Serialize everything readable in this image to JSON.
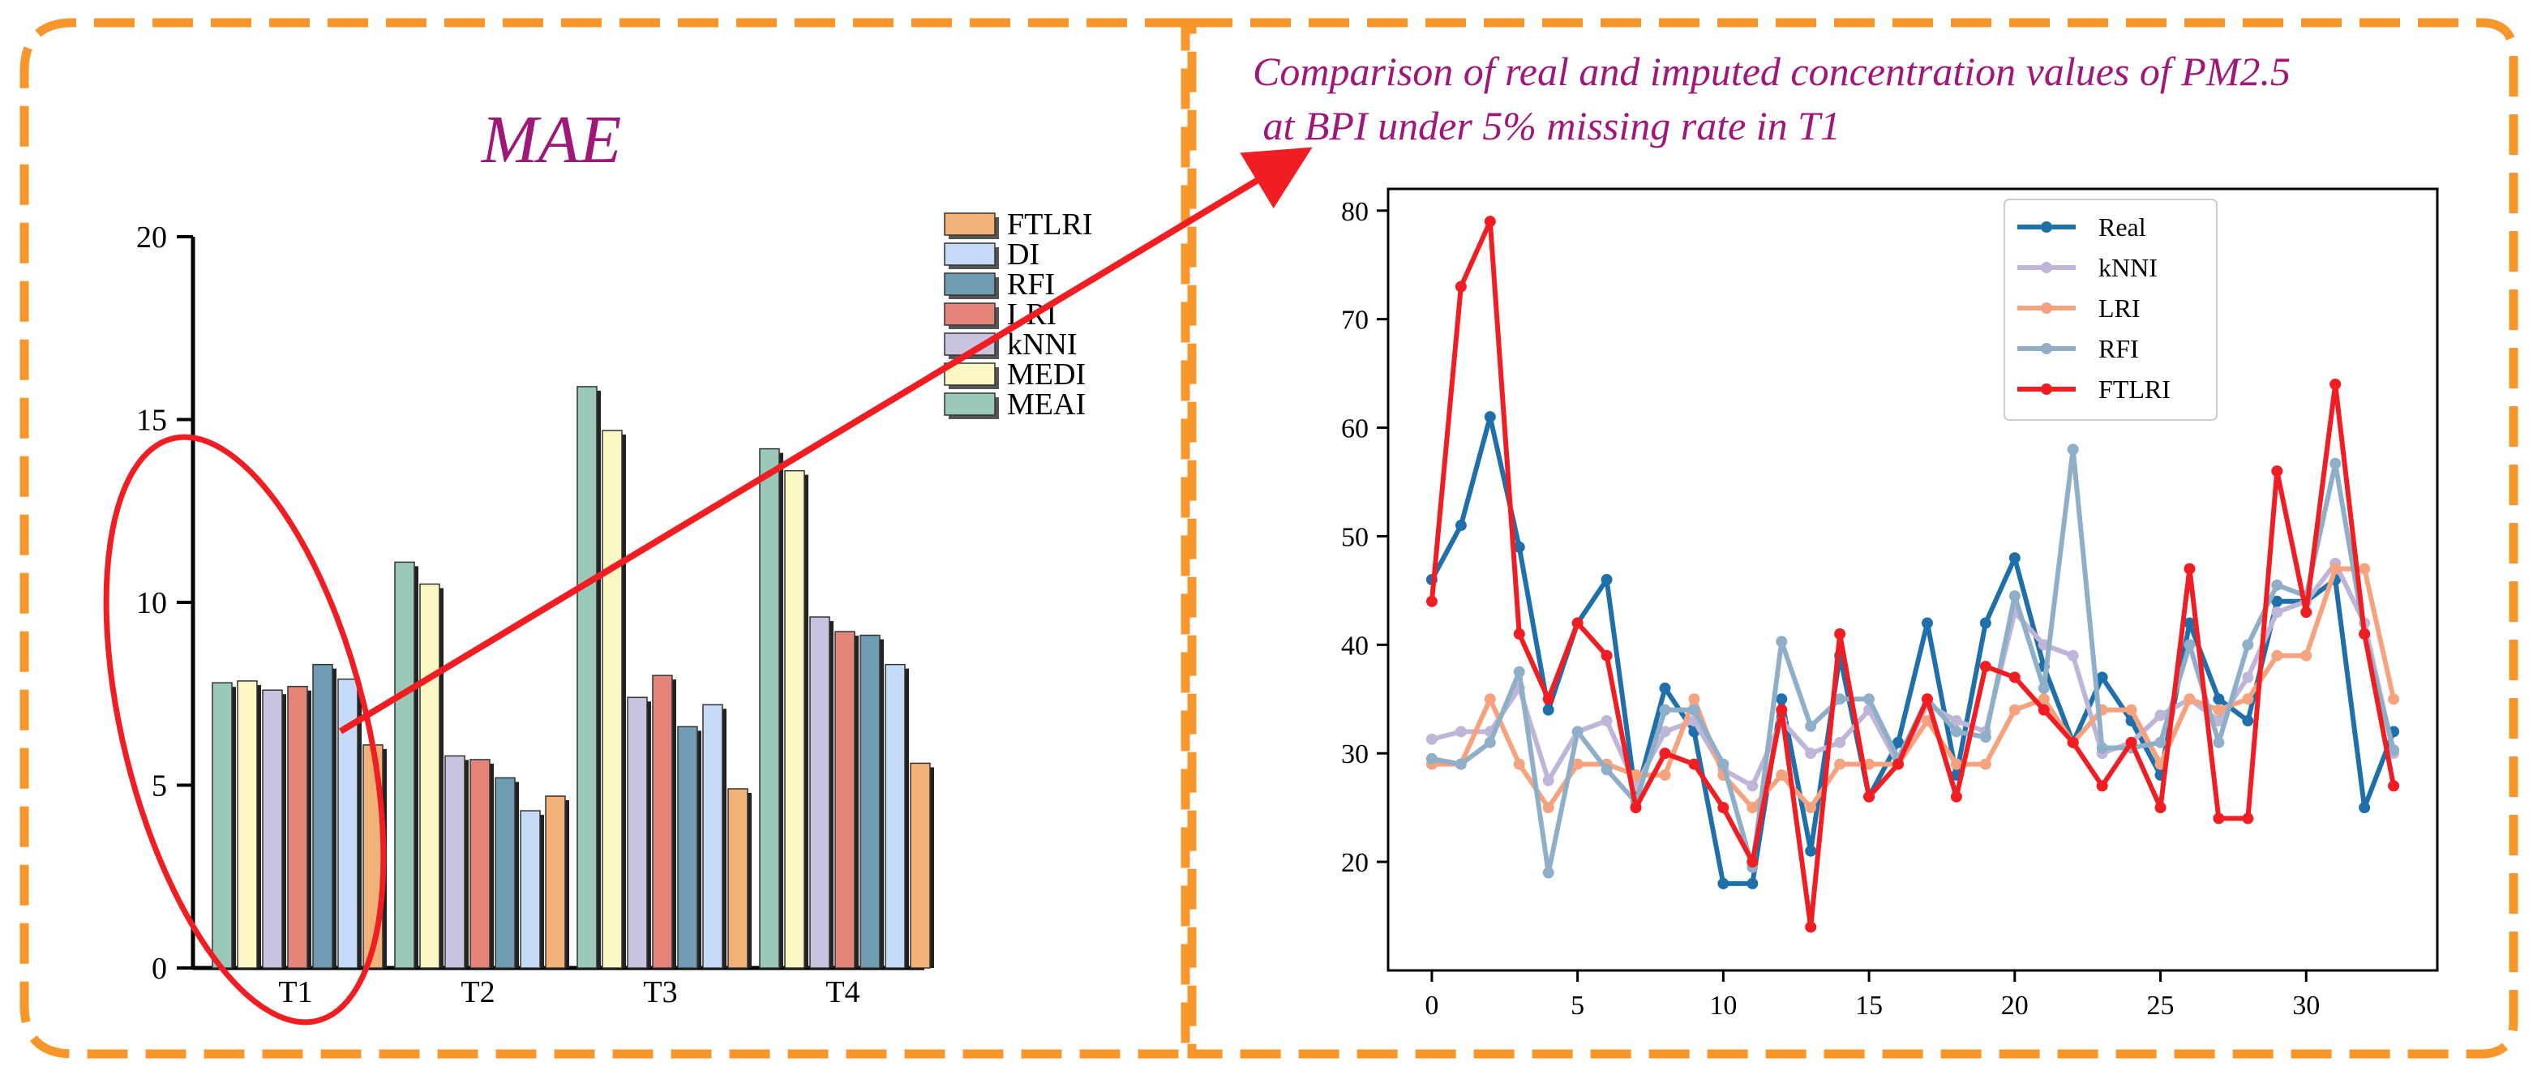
{
  "colors": {
    "frame": "#F7962A",
    "title": "#A0177A",
    "arrow": "#F01E23"
  },
  "chart_data": [
    {
      "type": "bar",
      "title": "MAE",
      "xlabel": "",
      "ylabel": "",
      "categories": [
        "T1",
        "T2",
        "T3",
        "T4"
      ],
      "ylim": [
        0,
        20
      ],
      "yticks": [
        "0",
        "5",
        "10",
        "15",
        "20"
      ],
      "legend_position": "top-right",
      "series": [
        {
          "name": "MEAI",
          "color": "#9AC8B9",
          "values": [
            7.8,
            11.1,
            15.9,
            14.2
          ]
        },
        {
          "name": "MEDI",
          "color": "#FAF7C2",
          "values": [
            7.85,
            10.5,
            14.7,
            13.6
          ]
        },
        {
          "name": "kNNI",
          "color": "#C9C3E0",
          "values": [
            7.6,
            5.8,
            7.4,
            9.6
          ]
        },
        {
          "name": "LRI",
          "color": "#E5857A",
          "values": [
            7.7,
            5.7,
            8.0,
            9.2
          ]
        },
        {
          "name": "RFI",
          "color": "#6F9BB3",
          "values": [
            8.3,
            5.2,
            6.6,
            9.1
          ]
        },
        {
          "name": "DI",
          "color": "#C4DAF6",
          "values": [
            7.9,
            4.3,
            7.2,
            8.3
          ]
        },
        {
          "name": "FTLRI",
          "color": "#F1B27A",
          "values": [
            6.1,
            4.7,
            4.9,
            5.6
          ]
        }
      ],
      "legend_order": [
        "FTLRI",
        "DI",
        "RFI",
        "LRI",
        "kNNI",
        "MEDI",
        "MEAI"
      ]
    },
    {
      "type": "line",
      "title": "Comparison of real and imputed concentration values of PM2.5",
      "title_line2": " at BPI under 5% missing rate in T1",
      "xlabel": "",
      "ylabel": "",
      "x": [
        0,
        1,
        2,
        3,
        4,
        5,
        6,
        7,
        8,
        9,
        10,
        11,
        12,
        13,
        14,
        15,
        16,
        17,
        18,
        19,
        20,
        21,
        22,
        23,
        24,
        25,
        26,
        27,
        28,
        29,
        30,
        31,
        32,
        33
      ],
      "xlim": [
        -1.5,
        34.5
      ],
      "ylim": [
        10,
        82
      ],
      "xticks": [
        "0",
        "5",
        "10",
        "15",
        "20",
        "25",
        "30"
      ],
      "yticks": [
        "20",
        "30",
        "40",
        "50",
        "60",
        "70",
        "80"
      ],
      "legend_position": "top-center",
      "series": [
        {
          "name": "Real",
          "color": "#1F6FAA",
          "values": [
            46,
            51,
            61,
            49,
            34,
            42,
            46,
            26,
            36,
            32,
            18,
            18,
            35,
            21,
            39,
            26,
            31,
            42,
            28,
            42,
            48,
            38,
            31,
            37,
            33,
            28,
            42,
            35,
            33,
            44,
            44,
            46,
            25,
            32
          ]
        },
        {
          "name": "kNNI",
          "color": "#BFB5D9",
          "values": [
            31.3,
            32,
            32,
            36,
            27.5,
            32,
            33,
            27,
            32,
            33,
            28.5,
            27,
            33,
            30,
            31,
            34,
            29,
            34.5,
            33,
            32,
            43,
            40,
            39,
            30,
            31,
            33.5,
            35,
            33,
            37,
            43,
            44,
            47.5,
            42,
            30
          ]
        },
        {
          "name": "LRI",
          "color": "#F5A27E",
          "values": [
            29,
            29,
            35,
            29,
            25,
            29,
            29,
            28,
            28,
            35,
            28,
            25,
            28,
            25,
            29,
            29,
            29,
            33,
            29,
            29,
            34,
            35,
            31,
            34,
            34,
            29,
            35,
            34,
            35,
            39,
            39,
            47,
            47,
            35
          ]
        },
        {
          "name": "RFI",
          "color": "#8FAFC8",
          "values": [
            29.5,
            29,
            31,
            37.5,
            19,
            32,
            28.5,
            25.5,
            34,
            34,
            29,
            19.5,
            40.3,
            32.5,
            35,
            35,
            29.5,
            35,
            32,
            31.5,
            44.5,
            36,
            58,
            30.5,
            30.5,
            31,
            40,
            31,
            40,
            45.5,
            44.5,
            56.7,
            41,
            30.3
          ]
        },
        {
          "name": "FTLRI",
          "color": "#F01E23",
          "values": [
            44,
            73,
            79,
            41,
            35,
            42,
            39,
            25,
            30,
            29,
            25,
            20,
            34,
            14,
            41,
            26,
            29,
            35,
            26,
            38,
            37,
            34,
            31,
            27,
            31,
            25,
            47,
            24,
            24,
            56,
            43,
            64,
            41,
            27
          ]
        }
      ]
    }
  ]
}
